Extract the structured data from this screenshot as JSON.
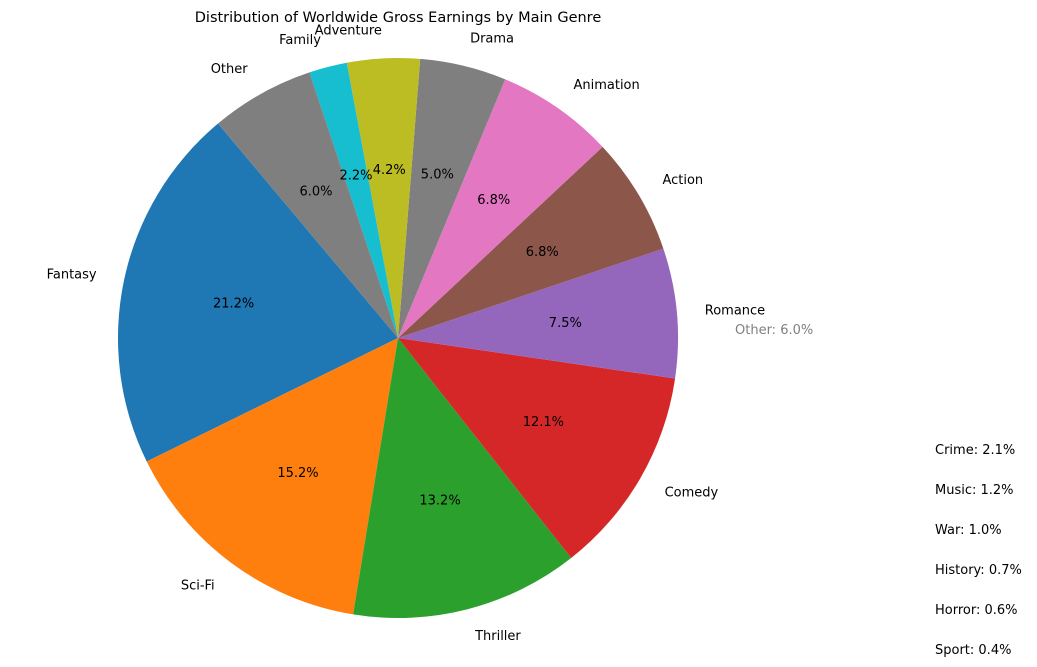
{
  "chart_data": {
    "type": "pie",
    "title": "Distribution of Worldwide Gross Earnings by Main Genre",
    "start_angle_deg": 130,
    "direction": "counterclockwise",
    "slices": [
      {
        "label": "Fantasy",
        "value": 21.2,
        "pct_label": "21.2%",
        "color": "#1f77b4"
      },
      {
        "label": "Sci-Fi",
        "value": 15.2,
        "pct_label": "15.2%",
        "color": "#ff7f0e"
      },
      {
        "label": "Thriller",
        "value": 13.2,
        "pct_label": "13.2%",
        "color": "#2ca02c"
      },
      {
        "label": "Comedy",
        "value": 12.1,
        "pct_label": "12.1%",
        "color": "#d62728"
      },
      {
        "label": "Romance",
        "value": 7.5,
        "pct_label": "7.5%",
        "color": "#9467bd"
      },
      {
        "label": "Action",
        "value": 6.8,
        "pct_label": "6.8%",
        "color": "#8c564b"
      },
      {
        "label": "Animation",
        "value": 6.8,
        "pct_label": "6.8%",
        "color": "#e377c2"
      },
      {
        "label": "Drama",
        "value": 5.0,
        "pct_label": "5.0%",
        "color": "#7f7f7f"
      },
      {
        "label": "Adventure",
        "value": 4.2,
        "pct_label": "4.2%",
        "color": "#bcbd22"
      },
      {
        "label": "Family",
        "value": 2.2,
        "pct_label": "2.2%",
        "color": "#17becf"
      },
      {
        "label": "Other",
        "value": 6.0,
        "pct_label": "6.0%",
        "color": "#7f7f7f"
      }
    ],
    "other_note": "Other: 6.0%",
    "other_breakdown": [
      "Crime: 2.1%",
      "Music: 1.2%",
      "War: 1.0%",
      "History: 0.7%",
      "Horror: 0.6%",
      "Sport: 0.4%"
    ]
  }
}
